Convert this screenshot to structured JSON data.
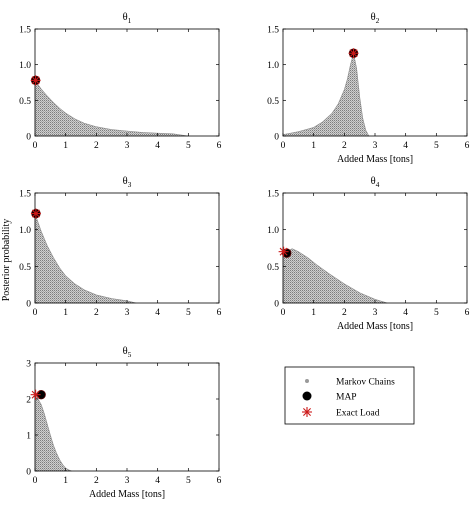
{
  "figure": {
    "ylabel": "Posterior probability",
    "legend": {
      "placement": "bottom-right",
      "entries": [
        {
          "key": "markov",
          "label": "Markov Chains",
          "color": "#9a9a9a",
          "marker": "small gray dot"
        },
        {
          "key": "map",
          "label": "MAP",
          "color": "#000000",
          "marker": "filled black circle"
        },
        {
          "key": "exact",
          "label": "Exact Load",
          "color": "#cc1a1a",
          "marker": "red asterisk"
        }
      ]
    }
  },
  "chart_data": [
    {
      "type": "area",
      "title_base": "θ",
      "title_sub": "1",
      "xlabel": "",
      "xlim": [
        0,
        6
      ],
      "ylim": [
        0,
        1.5
      ],
      "xticks": [
        0,
        1,
        2,
        3,
        4,
        5,
        6
      ],
      "yticks": [
        0,
        0.5,
        1,
        1.5
      ],
      "ytick_labels": [
        "0",
        "0.5",
        "1.0",
        "1.5"
      ],
      "markov_chain_envelope": {
        "x": [
          0,
          0.1,
          0.2,
          0.4,
          0.6,
          0.8,
          1.0,
          1.3,
          1.6,
          2.0,
          2.5,
          3.0,
          3.5,
          4.0,
          4.5,
          5.0
        ],
        "y": [
          0.78,
          0.72,
          0.66,
          0.56,
          0.47,
          0.39,
          0.32,
          0.24,
          0.18,
          0.13,
          0.09,
          0.07,
          0.05,
          0.04,
          0.03,
          0.0
        ]
      },
      "map": {
        "x": 0.02,
        "y": 0.78
      },
      "exact_load": {
        "x": 0.02,
        "y": 0.78
      }
    },
    {
      "type": "area",
      "title_base": "θ",
      "title_sub": "2",
      "xlabel": "Added Mass [tons]",
      "xlim": [
        0,
        6
      ],
      "ylim": [
        0,
        1.5
      ],
      "xticks": [
        0,
        1,
        2,
        3,
        4,
        5,
        6
      ],
      "yticks": [
        0,
        0.5,
        1,
        1.5
      ],
      "ytick_labels": [
        "0",
        "0.5",
        "1.0",
        "1.5"
      ],
      "markov_chain_envelope": {
        "x": [
          0,
          0.5,
          1.0,
          1.3,
          1.6,
          1.8,
          2.0,
          2.1,
          2.2,
          2.3,
          2.4,
          2.5,
          2.6,
          2.7,
          2.8
        ],
        "y": [
          0.02,
          0.06,
          0.12,
          0.2,
          0.32,
          0.45,
          0.65,
          0.8,
          1.0,
          1.16,
          0.95,
          0.55,
          0.25,
          0.08,
          0.0
        ]
      },
      "map": {
        "x": 2.3,
        "y": 1.16
      },
      "exact_load": {
        "x": 2.3,
        "y": 1.16
      }
    },
    {
      "type": "area",
      "title_base": "θ",
      "title_sub": "3",
      "xlabel": "",
      "xlim": [
        0,
        6
      ],
      "ylim": [
        0,
        1.5
      ],
      "xticks": [
        0,
        1,
        2,
        3,
        4,
        5,
        6
      ],
      "yticks": [
        0,
        0.5,
        1,
        1.5
      ],
      "ytick_labels": [
        "0",
        "0.5",
        "1.0",
        "1.5"
      ],
      "markov_chain_envelope": {
        "x": [
          0,
          0.1,
          0.2,
          0.4,
          0.6,
          0.8,
          1.0,
          1.3,
          1.6,
          2.0,
          2.5,
          3.0,
          3.3
        ],
        "y": [
          1.22,
          1.1,
          0.98,
          0.78,
          0.62,
          0.48,
          0.37,
          0.26,
          0.18,
          0.11,
          0.06,
          0.03,
          0.0
        ]
      },
      "map": {
        "x": 0.03,
        "y": 1.22
      },
      "exact_load": {
        "x": 0.03,
        "y": 1.22
      }
    },
    {
      "type": "area",
      "title_base": "θ",
      "title_sub": "4",
      "xlabel": "Added Mass [tons]",
      "xlim": [
        0,
        6
      ],
      "ylim": [
        0,
        1.5
      ],
      "xticks": [
        0,
        1,
        2,
        3,
        4,
        5,
        6
      ],
      "yticks": [
        0,
        0.5,
        1,
        1.5
      ],
      "ytick_labels": [
        "0",
        "0.5",
        "1.0",
        "1.5"
      ],
      "markov_chain_envelope": {
        "x": [
          0,
          0.1,
          0.3,
          0.5,
          0.8,
          1.1,
          1.5,
          2.0,
          2.5,
          3.0,
          3.4
        ],
        "y": [
          0.66,
          0.7,
          0.74,
          0.7,
          0.62,
          0.52,
          0.4,
          0.26,
          0.14,
          0.05,
          0.0
        ]
      },
      "map": {
        "x": 0.12,
        "y": 0.68
      },
      "exact_load": {
        "x": 0.02,
        "y": 0.7
      }
    },
    {
      "type": "area",
      "title_base": "θ",
      "title_sub": "5",
      "xlabel": "Added Mass [tons]",
      "xlim": [
        0,
        6
      ],
      "ylim": [
        0,
        3
      ],
      "xticks": [
        0,
        1,
        2,
        3,
        4,
        5,
        6
      ],
      "yticks": [
        0,
        1,
        2,
        3
      ],
      "ytick_labels": [
        "0",
        "1",
        "2",
        "3"
      ],
      "markov_chain_envelope": {
        "x": [
          0,
          0.1,
          0.2,
          0.3,
          0.4,
          0.5,
          0.6,
          0.7,
          0.8,
          0.9,
          1.0,
          1.1,
          1.2
        ],
        "y": [
          2.1,
          2.0,
          1.85,
          1.6,
          1.3,
          1.0,
          0.72,
          0.5,
          0.32,
          0.18,
          0.08,
          0.03,
          0.0
        ]
      },
      "map": {
        "x": 0.2,
        "y": 2.12
      },
      "exact_load": {
        "x": 0.02,
        "y": 2.12
      }
    }
  ]
}
